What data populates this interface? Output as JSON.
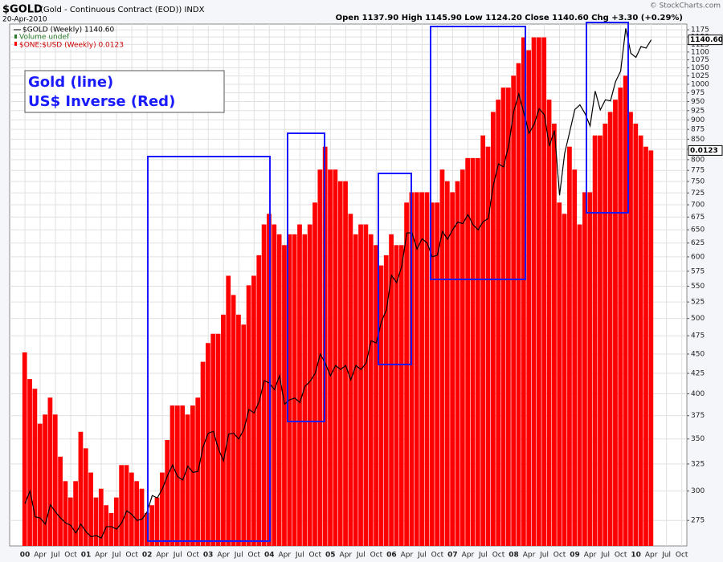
{
  "chart_data": {
    "type": "combo",
    "title": "$GOLD",
    "subtitle": "(Gold - Continuous Contract (EOD)) INDX",
    "date": "20-Apr-2010",
    "quote": "Open 1137.90 High 1145.90 Low 1124.20 Close 1140.60 Chg +3.30 (+0.29%)",
    "credit": "© StockCharts.com",
    "annotations": [
      "Gold (line)",
      "US$ Inverse (Red)"
    ],
    "legend_extra": "Volume undef",
    "log_scale": true,
    "grid": true,
    "x": [
      "2000-01",
      "2000-02",
      "2000-03",
      "2000-04",
      "2000-05",
      "2000-06",
      "2000-07",
      "2000-08",
      "2000-09",
      "2000-10",
      "2000-11",
      "2000-12",
      "2001-01",
      "2001-02",
      "2001-03",
      "2001-04",
      "2001-05",
      "2001-06",
      "2001-07",
      "2001-08",
      "2001-09",
      "2001-10",
      "2001-11",
      "2001-12",
      "2002-01",
      "2002-02",
      "2002-03",
      "2002-04",
      "2002-05",
      "2002-06",
      "2002-07",
      "2002-08",
      "2002-09",
      "2002-10",
      "2002-11",
      "2002-12",
      "2003-01",
      "2003-02",
      "2003-03",
      "2003-04",
      "2003-05",
      "2003-06",
      "2003-07",
      "2003-08",
      "2003-09",
      "2003-10",
      "2003-11",
      "2003-12",
      "2004-01",
      "2004-02",
      "2004-03",
      "2004-04",
      "2004-05",
      "2004-06",
      "2004-07",
      "2004-08",
      "2004-09",
      "2004-10",
      "2004-11",
      "2004-12",
      "2005-01",
      "2005-02",
      "2005-03",
      "2005-04",
      "2005-05",
      "2005-06",
      "2005-07",
      "2005-08",
      "2005-09",
      "2005-10",
      "2005-11",
      "2005-12",
      "2006-01",
      "2006-02",
      "2006-03",
      "2006-04",
      "2006-05",
      "2006-06",
      "2006-07",
      "2006-08",
      "2006-09",
      "2006-10",
      "2006-11",
      "2006-12",
      "2007-01",
      "2007-02",
      "2007-03",
      "2007-04",
      "2007-05",
      "2007-06",
      "2007-07",
      "2007-08",
      "2007-09",
      "2007-10",
      "2007-11",
      "2007-12",
      "2008-01",
      "2008-02",
      "2008-03",
      "2008-04",
      "2008-05",
      "2008-06",
      "2008-07",
      "2008-08",
      "2008-09",
      "2008-10",
      "2008-11",
      "2008-12",
      "2009-01",
      "2009-02",
      "2009-03",
      "2009-04",
      "2009-05",
      "2009-06",
      "2009-07",
      "2009-08",
      "2009-09",
      "2009-10",
      "2009-11",
      "2009-12",
      "2010-01",
      "2010-02",
      "2010-03",
      "2010-04"
    ],
    "series": [
      {
        "name": "$GOLD (Weekly) 1140.60",
        "type": "line",
        "color": "#000000",
        "axis": "y",
        "last_label": "1140.60",
        "values": [
          289,
          300,
          278,
          277,
          272,
          288,
          282,
          277,
          273,
          271,
          265,
          272,
          266,
          262,
          263,
          261,
          270,
          270,
          268,
          273,
          283,
          280,
          275,
          276,
          282,
          296,
          294,
          302,
          314,
          324,
          313,
          310,
          323,
          317,
          318,
          342,
          356,
          358,
          340,
          328,
          355,
          356,
          350,
          360,
          382,
          378,
          391,
          416,
          413,
          405,
          422,
          388,
          393,
          395,
          390,
          409,
          415,
          425,
          450,
          438,
          422,
          435,
          430,
          435,
          417,
          435,
          430,
          438,
          468,
          465,
          495,
          513,
          568,
          556,
          583,
          644,
          644,
          614,
          633,
          625,
          600,
          603,
          647,
          632,
          650,
          665,
          662,
          680,
          660,
          650,
          666,
          672,
          742,
          790,
          783,
          834,
          923,
          972,
          918,
          865,
          888,
          930,
          914,
          833,
          872,
          720,
          815,
          869,
          928,
          941,
          917,
          884,
          980,
          927,
          955,
          952,
          1008,
          1040,
          1180,
          1096,
          1083,
          1118,
          1113,
          1140.6
        ]
      },
      {
        "name": "$ONE:$USD (Weekly) 0.0123",
        "type": "bar",
        "color": "#ff0000",
        "axis": "y2",
        "last_label": "0.0123",
        "values": [
          0.0099,
          0.00962,
          0.00952,
          0.00917,
          0.00926,
          0.00943,
          0.00926,
          0.00885,
          0.00862,
          0.00847,
          0.00862,
          0.00909,
          0.00893,
          0.0087,
          0.00847,
          0.00855,
          0.0084,
          0.00833,
          0.00847,
          0.00877,
          0.00877,
          0.0087,
          0.00862,
          0.00855,
          0.00833,
          0.0084,
          0.00847,
          0.0087,
          0.00901,
          0.00935,
          0.00935,
          0.00935,
          0.00926,
          0.00935,
          0.00943,
          0.0098,
          0.01,
          0.0101,
          0.0101,
          0.01031,
          0.01075,
          0.01053,
          0.01031,
          0.0102,
          0.01064,
          0.01075,
          0.01099,
          0.01136,
          0.01149,
          0.01136,
          0.01124,
          0.01111,
          0.01124,
          0.01124,
          0.01136,
          0.01124,
          0.01136,
          0.01163,
          0.01205,
          0.01235,
          0.01205,
          0.01205,
          0.0119,
          0.0119,
          0.01149,
          0.01124,
          0.01136,
          0.01136,
          0.01124,
          0.01111,
          0.01087,
          0.01099,
          0.01124,
          0.01111,
          0.01111,
          0.01163,
          0.01176,
          0.01176,
          0.01176,
          0.01176,
          0.01163,
          0.01163,
          0.01205,
          0.0119,
          0.01176,
          0.0119,
          0.01205,
          0.0122,
          0.0122,
          0.0122,
          0.0125,
          0.01235,
          0.01282,
          0.01299,
          0.01316,
          0.01316,
          0.01333,
          0.01351,
          0.01389,
          0.0137,
          0.01389,
          0.01389,
          0.01389,
          0.01299,
          0.01266,
          0.01163,
          0.01149,
          0.01235,
          0.01205,
          0.01136,
          0.01176,
          0.01176,
          0.0125,
          0.0125,
          0.01266,
          0.01282,
          0.01299,
          0.01316,
          0.01333,
          0.01282,
          0.01266,
          0.0125,
          0.01235,
          0.0123
        ]
      }
    ],
    "xlim": [
      "1999-10",
      "2010-11"
    ],
    "xticks": [
      {
        "value": "2000-01",
        "label": "00"
      },
      {
        "value": "2000-04",
        "label": "Apr"
      },
      {
        "value": "2000-07",
        "label": "Jul"
      },
      {
        "value": "2000-10",
        "label": "Oct"
      },
      {
        "value": "2001-01",
        "label": "01"
      },
      {
        "value": "2001-04",
        "label": "Apr"
      },
      {
        "value": "2001-07",
        "label": "Jul"
      },
      {
        "value": "2001-10",
        "label": "Oct"
      },
      {
        "value": "2002-01",
        "label": "02"
      },
      {
        "value": "2002-04",
        "label": "Apr"
      },
      {
        "value": "2002-07",
        "label": "Jul"
      },
      {
        "value": "2002-10",
        "label": "Oct"
      },
      {
        "value": "2003-01",
        "label": "03"
      },
      {
        "value": "2003-04",
        "label": "Apr"
      },
      {
        "value": "2003-07",
        "label": "Jul"
      },
      {
        "value": "2003-10",
        "label": "Oct"
      },
      {
        "value": "2004-01",
        "label": "04"
      },
      {
        "value": "2004-04",
        "label": "Apr"
      },
      {
        "value": "2004-07",
        "label": "Jul"
      },
      {
        "value": "2004-10",
        "label": "Oct"
      },
      {
        "value": "2005-01",
        "label": "05"
      },
      {
        "value": "2005-04",
        "label": "Apr"
      },
      {
        "value": "2005-07",
        "label": "Jul"
      },
      {
        "value": "2005-10",
        "label": "Oct"
      },
      {
        "value": "2006-01",
        "label": "06"
      },
      {
        "value": "2006-04",
        "label": "Apr"
      },
      {
        "value": "2006-07",
        "label": "Jul"
      },
      {
        "value": "2006-10",
        "label": "Oct"
      },
      {
        "value": "2007-01",
        "label": "07"
      },
      {
        "value": "2007-04",
        "label": "Apr"
      },
      {
        "value": "2007-07",
        "label": "Jul"
      },
      {
        "value": "2007-10",
        "label": "Oct"
      },
      {
        "value": "2008-01",
        "label": "08"
      },
      {
        "value": "2008-04",
        "label": "Apr"
      },
      {
        "value": "2008-07",
        "label": "Jul"
      },
      {
        "value": "2008-10",
        "label": "Oct"
      },
      {
        "value": "2009-01",
        "label": "09"
      },
      {
        "value": "2009-04",
        "label": "Apr"
      },
      {
        "value": "2009-07",
        "label": "Jul"
      },
      {
        "value": "2009-10",
        "label": "Oct"
      },
      {
        "value": "2010-01",
        "label": "10"
      },
      {
        "value": "2010-04",
        "label": "Apr"
      },
      {
        "value": "2010-07",
        "label": "Jul"
      },
      {
        "value": "2010-10",
        "label": "Oct"
      }
    ],
    "ylim": [
      255,
      1195
    ],
    "yticks": [
      275,
      300,
      325,
      350,
      375,
      400,
      425,
      450,
      475,
      500,
      525,
      550,
      575,
      600,
      625,
      650,
      675,
      700,
      725,
      750,
      775,
      800,
      825,
      850,
      875,
      900,
      925,
      950,
      975,
      1000,
      1025,
      1050,
      1075,
      1100,
      1125,
      1150,
      1175
    ],
    "y2lim": [
      0.00804,
      0.01409
    ]
  }
}
